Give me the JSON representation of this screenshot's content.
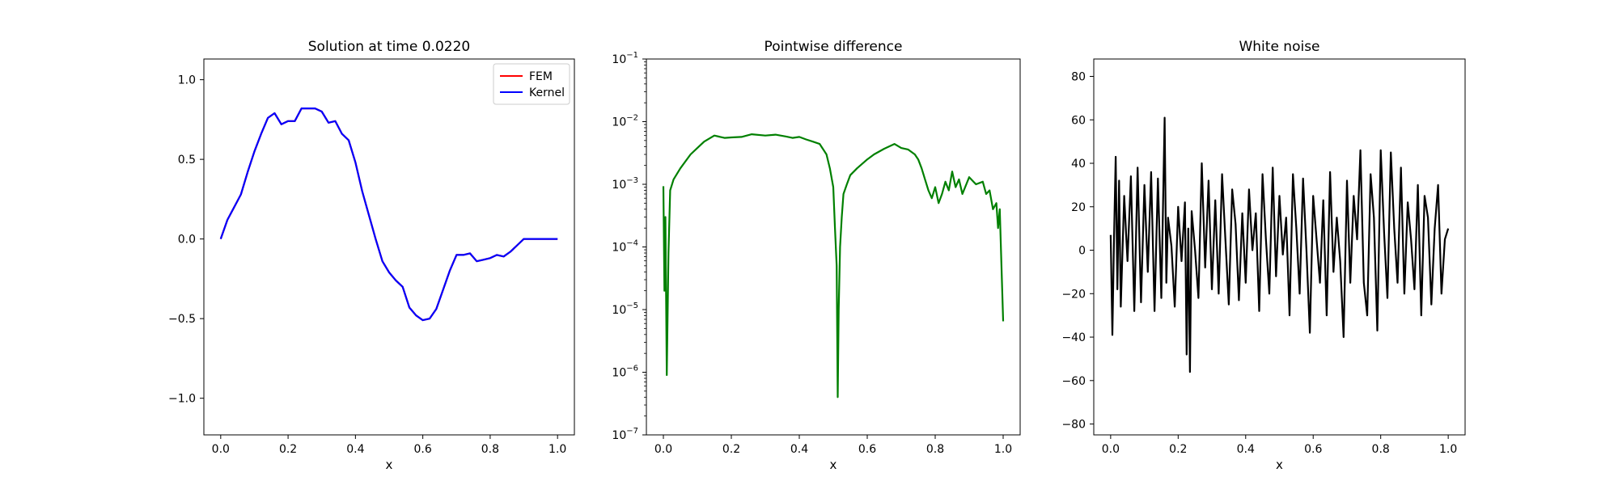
{
  "chart_data": [
    {
      "type": "line",
      "title": "Solution at time 0.0220",
      "xlabel": "x",
      "ylabel": "",
      "xlim": [
        -0.05,
        1.05
      ],
      "ylim": [
        -1.23,
        1.13
      ],
      "xticks": [
        "0.0",
        "0.2",
        "0.4",
        "0.6",
        "0.8",
        "1.0"
      ],
      "yticks": [
        "−1.0",
        "−0.5",
        "0.0",
        "0.5",
        "1.0"
      ],
      "legend": "top-right",
      "x": [
        0.0,
        0.02,
        0.04,
        0.06,
        0.08,
        0.1,
        0.12,
        0.14,
        0.16,
        0.18,
        0.2,
        0.22,
        0.24,
        0.26,
        0.28,
        0.3,
        0.32,
        0.34,
        0.36,
        0.38,
        0.4,
        0.42,
        0.44,
        0.46,
        0.48,
        0.5,
        0.52,
        0.54,
        0.56,
        0.58,
        0.6,
        0.62,
        0.64,
        0.66,
        0.68,
        0.7,
        0.72,
        0.74,
        0.76,
        0.78,
        0.8,
        0.82,
        0.84,
        0.86,
        0.88,
        0.9,
        0.92,
        0.94,
        0.96,
        0.98,
        1.0
      ],
      "series": [
        {
          "name": "FEM",
          "color": "#ff0000",
          "values": [
            0.0,
            0.12,
            0.2,
            0.28,
            0.42,
            0.55,
            0.66,
            0.76,
            0.79,
            0.72,
            0.74,
            0.74,
            0.82,
            0.82,
            0.82,
            0.8,
            0.73,
            0.74,
            0.66,
            0.62,
            0.48,
            0.3,
            0.15,
            0.0,
            -0.14,
            -0.21,
            -0.26,
            -0.3,
            -0.43,
            -0.48,
            -0.51,
            -0.5,
            -0.44,
            -0.32,
            -0.2,
            -0.1,
            -0.1,
            -0.09,
            -0.14,
            -0.13,
            -0.12,
            -0.1,
            -0.11,
            -0.08,
            -0.04,
            0.0,
            0.0,
            0.0,
            0.0,
            0.0,
            0.0
          ]
        },
        {
          "name": "Kernel",
          "color": "#0000ff",
          "values": [
            0.0,
            0.12,
            0.2,
            0.28,
            0.42,
            0.55,
            0.66,
            0.76,
            0.79,
            0.72,
            0.74,
            0.74,
            0.82,
            0.82,
            0.82,
            0.8,
            0.73,
            0.74,
            0.66,
            0.62,
            0.48,
            0.3,
            0.15,
            0.0,
            -0.14,
            -0.21,
            -0.26,
            -0.3,
            -0.43,
            -0.48,
            -0.51,
            -0.5,
            -0.44,
            -0.32,
            -0.2,
            -0.1,
            -0.1,
            -0.09,
            -0.14,
            -0.13,
            -0.12,
            -0.1,
            -0.11,
            -0.08,
            -0.04,
            0.0,
            0.0,
            0.0,
            0.0,
            0.0,
            0.0
          ]
        }
      ]
    },
    {
      "type": "line",
      "title": "Pointwise difference",
      "xlabel": "x",
      "ylabel": "",
      "yscale": "log",
      "xlim": [
        -0.05,
        1.05
      ],
      "ylim": [
        1e-07,
        0.1
      ],
      "xticks": [
        "0.0",
        "0.2",
        "0.4",
        "0.6",
        "0.8",
        "1.0"
      ],
      "yticks": [
        {
          "base": "10",
          "exp": "−1"
        },
        {
          "base": "10",
          "exp": "−2"
        },
        {
          "base": "10",
          "exp": "−3"
        },
        {
          "base": "10",
          "exp": "−4"
        },
        {
          "base": "10",
          "exp": "−5"
        },
        {
          "base": "10",
          "exp": "−6"
        },
        {
          "base": "10",
          "exp": "−7"
        }
      ],
      "series": [
        {
          "color": "#008000",
          "x": [
            0.0,
            0.003,
            0.006,
            0.01,
            0.015,
            0.02,
            0.03,
            0.05,
            0.08,
            0.1,
            0.12,
            0.15,
            0.18,
            0.2,
            0.23,
            0.26,
            0.3,
            0.33,
            0.36,
            0.38,
            0.4,
            0.42,
            0.44,
            0.46,
            0.48,
            0.49,
            0.5,
            0.505,
            0.51,
            0.513,
            0.516,
            0.52,
            0.525,
            0.53,
            0.54,
            0.55,
            0.57,
            0.6,
            0.62,
            0.65,
            0.68,
            0.7,
            0.72,
            0.74,
            0.75,
            0.76,
            0.77,
            0.78,
            0.79,
            0.8,
            0.81,
            0.82,
            0.83,
            0.84,
            0.85,
            0.86,
            0.87,
            0.88,
            0.9,
            0.92,
            0.94,
            0.95,
            0.96,
            0.97,
            0.98,
            0.985,
            0.99,
            0.995,
            1.0
          ],
          "values": [
            0.00093,
            2e-05,
            0.0003,
            9e-07,
            8e-05,
            0.0008,
            0.0012,
            0.0018,
            0.003,
            0.0038,
            0.0048,
            0.006,
            0.0055,
            0.0056,
            0.0057,
            0.0063,
            0.006,
            0.0062,
            0.0058,
            0.0055,
            0.0057,
            0.0052,
            0.0048,
            0.0044,
            0.003,
            0.0018,
            0.0009,
            0.0002,
            5e-05,
            4e-07,
            1e-05,
            0.0001,
            0.0003,
            0.0007,
            0.001,
            0.0014,
            0.0018,
            0.0025,
            0.003,
            0.0037,
            0.0044,
            0.0038,
            0.0036,
            0.003,
            0.0025,
            0.0018,
            0.0012,
            0.0008,
            0.0006,
            0.0009,
            0.0005,
            0.0007,
            0.0011,
            0.0008,
            0.0016,
            0.0009,
            0.0012,
            0.0007,
            0.0013,
            0.001,
            0.0011,
            0.0007,
            0.0008,
            0.0004,
            0.0005,
            0.0002,
            0.0004,
            5e-05,
            6.5e-06
          ]
        }
      ]
    },
    {
      "type": "line",
      "title": "White noise",
      "xlabel": "x",
      "ylabel": "",
      "xlim": [
        -0.05,
        1.05
      ],
      "ylim": [
        -85,
        88
      ],
      "xticks": [
        "0.0",
        "0.2",
        "0.4",
        "0.6",
        "0.8",
        "1.0"
      ],
      "yticks": [
        "80",
        "60",
        "40",
        "20",
        "0",
        "−20",
        "−40",
        "−60",
        "−80"
      ],
      "series": [
        {
          "color": "#000000",
          "x": [
            0.0,
            0.005,
            0.01,
            0.015,
            0.02,
            0.025,
            0.03,
            0.04,
            0.05,
            0.06,
            0.07,
            0.08,
            0.09,
            0.1,
            0.11,
            0.12,
            0.13,
            0.14,
            0.15,
            0.16,
            0.165,
            0.17,
            0.18,
            0.19,
            0.2,
            0.21,
            0.22,
            0.225,
            0.23,
            0.235,
            0.24,
            0.25,
            0.26,
            0.27,
            0.28,
            0.29,
            0.3,
            0.31,
            0.32,
            0.33,
            0.34,
            0.35,
            0.36,
            0.37,
            0.38,
            0.39,
            0.4,
            0.41,
            0.42,
            0.43,
            0.44,
            0.45,
            0.46,
            0.47,
            0.48,
            0.49,
            0.5,
            0.51,
            0.52,
            0.53,
            0.54,
            0.55,
            0.56,
            0.57,
            0.58,
            0.59,
            0.6,
            0.61,
            0.62,
            0.63,
            0.64,
            0.65,
            0.66,
            0.67,
            0.68,
            0.69,
            0.7,
            0.71,
            0.72,
            0.73,
            0.74,
            0.75,
            0.76,
            0.77,
            0.78,
            0.79,
            0.8,
            0.81,
            0.82,
            0.83,
            0.84,
            0.85,
            0.86,
            0.87,
            0.88,
            0.89,
            0.9,
            0.91,
            0.92,
            0.93,
            0.94,
            0.95,
            0.96,
            0.97,
            0.98,
            0.99,
            1.0
          ],
          "values": [
            7,
            -39,
            5,
            43,
            -18,
            32,
            -26,
            25,
            -5,
            34,
            -28,
            38,
            -24,
            30,
            -10,
            36,
            -28,
            33,
            -22,
            61,
            -15,
            15,
            2,
            -26,
            20,
            -5,
            22,
            -48,
            10,
            -56,
            18,
            0,
            -22,
            40,
            -8,
            32,
            -18,
            23,
            -20,
            35,
            5,
            -25,
            28,
            12,
            -23,
            17,
            -15,
            28,
            0,
            17,
            -28,
            35,
            5,
            -20,
            38,
            -12,
            25,
            -2,
            15,
            -30,
            35,
            10,
            -20,
            33,
            0,
            -38,
            25,
            5,
            -15,
            23,
            -30,
            36,
            -10,
            15,
            -5,
            -40,
            32,
            -15,
            25,
            5,
            46,
            -15,
            -30,
            35,
            15,
            -37,
            46,
            8,
            -22,
            45,
            10,
            -15,
            38,
            -20,
            22,
            5,
            -18,
            30,
            -30,
            25,
            15,
            -25,
            10,
            30,
            -20,
            5,
            10
          ]
        }
      ]
    }
  ]
}
